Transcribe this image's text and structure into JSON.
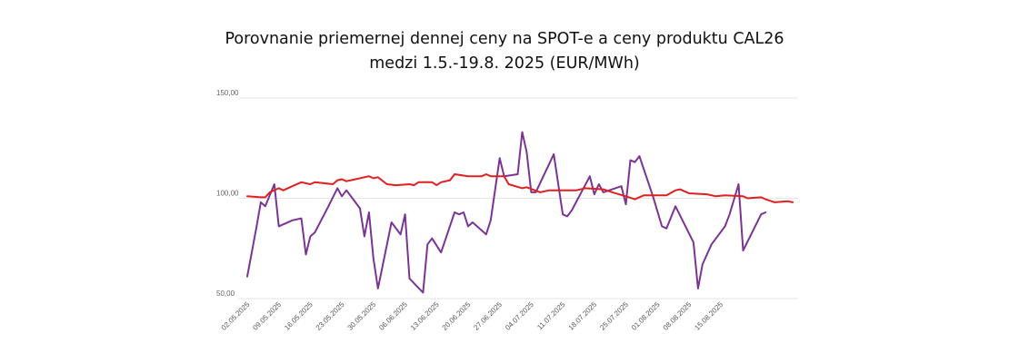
{
  "chart_data": {
    "type": "line",
    "title_line1": "Porovnanie priemernej dennej ceny na SPOT-e a ceny produktu CAL26",
    "title_line2": "medzi 1.5.-19.8. 2025 (EUR/MWh)",
    "ylim": [
      50,
      150
    ],
    "yticks": [
      "150,00",
      "100,00",
      "50,00"
    ],
    "x_start": "2025-05-01",
    "x_end": "2025-08-19",
    "xtick_labels": [
      "02.05.2025",
      "09.05.2025",
      "16.05.2025",
      "23.05.2025",
      "30.05.2025",
      "06.06.2025",
      "13.06.2025",
      "20.06.2025",
      "27.06.2025",
      "04.07.2025",
      "11.07.2025",
      "18.07.2025",
      "25.07.2025",
      "01.08.2025",
      "08.08.2025",
      "15.08.2025"
    ],
    "grid": true,
    "legend": "none",
    "series": [
      {
        "color": "#7b3494",
        "values": [
          [
            "2025-05-02",
            61
          ],
          [
            "2025-05-04",
            85
          ],
          [
            "2025-05-05",
            98
          ],
          [
            "2025-05-06",
            96
          ],
          [
            "2025-05-08",
            107
          ],
          [
            "2025-05-09",
            86
          ],
          [
            "2025-05-12",
            89
          ],
          [
            "2025-05-14",
            90
          ],
          [
            "2025-05-15",
            72
          ],
          [
            "2025-05-16",
            81
          ],
          [
            "2025-05-17",
            83
          ],
          [
            "2025-05-20",
            96
          ],
          [
            "2025-05-22",
            105
          ],
          [
            "2025-05-23",
            101
          ],
          [
            "2025-05-24",
            104
          ],
          [
            "2025-05-27",
            95
          ],
          [
            "2025-05-28",
            81
          ],
          [
            "2025-05-29",
            93
          ],
          [
            "2025-05-30",
            70
          ],
          [
            "2025-05-31",
            55
          ],
          [
            "2025-06-03",
            88
          ],
          [
            "2025-06-05",
            82
          ],
          [
            "2025-06-06",
            92
          ],
          [
            "2025-06-07",
            60
          ],
          [
            "2025-06-10",
            53
          ],
          [
            "2025-06-11",
            77
          ],
          [
            "2025-06-12",
            80
          ],
          [
            "2025-06-14",
            73
          ],
          [
            "2025-06-17",
            93
          ],
          [
            "2025-06-18",
            92
          ],
          [
            "2025-06-19",
            93
          ],
          [
            "2025-06-20",
            86
          ],
          [
            "2025-06-21",
            88
          ],
          [
            "2025-06-24",
            82
          ],
          [
            "2025-06-25",
            89
          ],
          [
            "2025-06-27",
            120
          ],
          [
            "2025-06-28",
            111
          ],
          [
            "2025-07-01",
            112
          ],
          [
            "2025-07-02",
            133
          ],
          [
            "2025-07-03",
            123
          ],
          [
            "2025-07-04",
            103
          ],
          [
            "2025-07-05",
            103
          ],
          [
            "2025-07-09",
            122
          ],
          [
            "2025-07-11",
            92
          ],
          [
            "2025-07-12",
            91
          ],
          [
            "2025-07-13",
            94
          ],
          [
            "2025-07-17",
            111
          ],
          [
            "2025-07-18",
            102
          ],
          [
            "2025-07-19",
            107
          ],
          [
            "2025-07-20",
            103
          ],
          [
            "2025-07-24",
            106
          ],
          [
            "2025-07-25",
            97
          ],
          [
            "2025-07-26",
            119
          ],
          [
            "2025-07-27",
            118
          ],
          [
            "2025-07-28",
            121
          ],
          [
            "2025-07-31",
            101
          ],
          [
            "2025-08-02",
            86
          ],
          [
            "2025-08-03",
            85
          ],
          [
            "2025-08-05",
            96
          ],
          [
            "2025-08-09",
            78
          ],
          [
            "2025-08-10",
            55
          ],
          [
            "2025-08-11",
            67
          ],
          [
            "2025-08-13",
            77
          ],
          [
            "2025-08-16",
            86
          ],
          [
            "2025-08-17",
            92
          ],
          [
            "2025-08-19",
            107
          ],
          [
            "2025-08-20",
            74
          ],
          [
            "2025-08-24",
            92
          ],
          [
            "2025-08-25",
            93
          ]
        ]
      },
      {
        "color": "#e02020",
        "values": [
          [
            "2025-05-02",
            101
          ],
          [
            "2025-05-05",
            100.5
          ],
          [
            "2025-05-06",
            100.5
          ],
          [
            "2025-05-07",
            103
          ],
          [
            "2025-05-09",
            105
          ],
          [
            "2025-05-10",
            104
          ],
          [
            "2025-05-12",
            106
          ],
          [
            "2025-05-14",
            108
          ],
          [
            "2025-05-16",
            107
          ],
          [
            "2025-05-17",
            108
          ],
          [
            "2025-05-21",
            107
          ],
          [
            "2025-05-22",
            109
          ],
          [
            "2025-05-23",
            109.5
          ],
          [
            "2025-05-24",
            108.5
          ],
          [
            "2025-05-25",
            109
          ],
          [
            "2025-05-29",
            111
          ],
          [
            "2025-05-30",
            110
          ],
          [
            "2025-05-31",
            110.5
          ],
          [
            "2025-06-02",
            107
          ],
          [
            "2025-06-04",
            106.5
          ],
          [
            "2025-06-07",
            107
          ],
          [
            "2025-06-08",
            106.5
          ],
          [
            "2025-06-09",
            108
          ],
          [
            "2025-06-12",
            108
          ],
          [
            "2025-06-13",
            106.5
          ],
          [
            "2025-06-14",
            108
          ],
          [
            "2025-06-16",
            109
          ],
          [
            "2025-06-17",
            112
          ],
          [
            "2025-06-20",
            111
          ],
          [
            "2025-06-23",
            111
          ],
          [
            "2025-06-24",
            112
          ],
          [
            "2025-06-25",
            111
          ],
          [
            "2025-06-28",
            111
          ],
          [
            "2025-06-29",
            107
          ],
          [
            "2025-07-02",
            105
          ],
          [
            "2025-07-03",
            105.5
          ],
          [
            "2025-07-06",
            103
          ],
          [
            "2025-07-08",
            104
          ],
          [
            "2025-07-14",
            104
          ],
          [
            "2025-07-16",
            105
          ],
          [
            "2025-07-20",
            104.5
          ],
          [
            "2025-07-22",
            103
          ],
          [
            "2025-07-25",
            101
          ],
          [
            "2025-07-27",
            99.5
          ],
          [
            "2025-07-29",
            101.5
          ],
          [
            "2025-08-03",
            101.5
          ],
          [
            "2025-08-05",
            104
          ],
          [
            "2025-08-06",
            104.5
          ],
          [
            "2025-08-07",
            103.5
          ],
          [
            "2025-08-08",
            102.5
          ],
          [
            "2025-08-12",
            102
          ],
          [
            "2025-08-14",
            101
          ],
          [
            "2025-08-16",
            101.5
          ],
          [
            "2025-08-20",
            101
          ],
          [
            "2025-08-21",
            100
          ],
          [
            "2025-08-24",
            100.5
          ],
          [
            "2025-08-25",
            99.5
          ],
          [
            "2025-08-27",
            98
          ],
          [
            "2025-08-30",
            98.5
          ],
          [
            "2025-08-31",
            98
          ]
        ]
      }
    ]
  }
}
